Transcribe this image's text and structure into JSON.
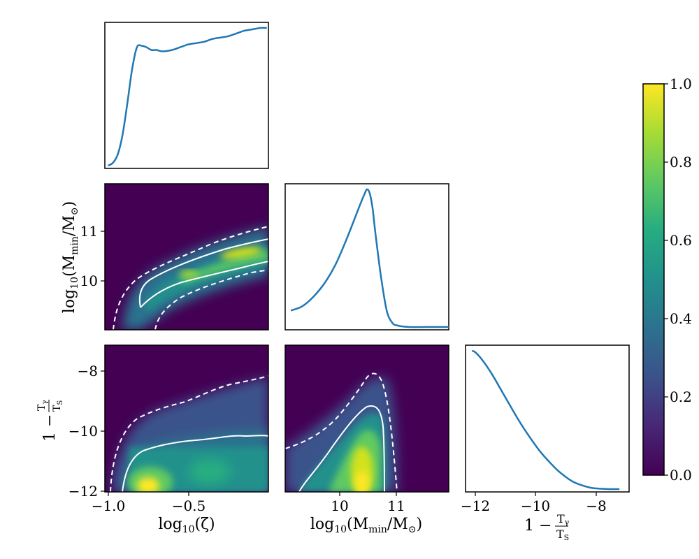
{
  "chart_data": [
    {
      "type": "line",
      "panel": "marginal-zeta",
      "x": [
        -1.0,
        -0.97,
        -0.94,
        -0.91,
        -0.88,
        -0.85,
        -0.82,
        -0.79,
        -0.76,
        -0.73,
        -0.7,
        -0.66,
        -0.6,
        -0.55,
        -0.5,
        -0.45,
        -0.4,
        -0.35,
        -0.3,
        -0.25,
        -0.2,
        -0.15,
        -0.1,
        -0.05,
        -0.01
      ],
      "values": [
        0.0,
        0.02,
        0.08,
        0.22,
        0.45,
        0.7,
        0.86,
        0.87,
        0.86,
        0.84,
        0.84,
        0.83,
        0.84,
        0.86,
        0.88,
        0.89,
        0.9,
        0.92,
        0.93,
        0.94,
        0.96,
        0.98,
        0.99,
        1.0,
        1.0
      ],
      "xlim": [
        -1.02,
        0.0
      ],
      "ylim": [
        0,
        1
      ]
    },
    {
      "type": "line",
      "panel": "marginal-mmin",
      "x": [
        9.1,
        9.3,
        9.5,
        9.7,
        9.9,
        10.1,
        10.3,
        10.4,
        10.45,
        10.5,
        10.55,
        10.6,
        10.7,
        10.8,
        10.9,
        11.0,
        11.2,
        11.5,
        11.9
      ],
      "values": [
        0.12,
        0.15,
        0.22,
        0.32,
        0.46,
        0.65,
        0.86,
        0.96,
        1.0,
        0.97,
        0.86,
        0.68,
        0.36,
        0.12,
        0.03,
        0.01,
        0.0,
        0.0,
        0.0
      ],
      "xlim": [
        9.0,
        11.9
      ],
      "ylim": [
        0,
        1
      ]
    },
    {
      "type": "line",
      "panel": "marginal-tgamma",
      "x": [
        -12.1,
        -12.0,
        -11.8,
        -11.5,
        -11.2,
        -11.0,
        -10.7,
        -10.4,
        -10.0,
        -9.7,
        -9.4,
        -9.0,
        -8.7,
        -8.4,
        -8.1,
        -7.8,
        -7.5
      ],
      "values": [
        1.0,
        0.99,
        0.94,
        0.84,
        0.72,
        0.64,
        0.52,
        0.41,
        0.28,
        0.2,
        0.13,
        0.06,
        0.03,
        0.01,
        0.003,
        0.0,
        0.0
      ],
      "xlim": [
        -12.3,
        -7.2
      ],
      "ylim": [
        0,
        1
      ]
    },
    {
      "type": "heatmap",
      "panel": "joint-zeta-mmin",
      "xlim": [
        -1.02,
        0.0
      ],
      "ylim": [
        9.0,
        11.95
      ],
      "yticks": [
        "10",
        "11"
      ],
      "ylabel": "log10(Mmin/M⊙)",
      "contour_68": {
        "upper": [
          [
            -0.79,
            9.45
          ],
          [
            -0.78,
            9.8
          ],
          [
            -0.7,
            10.05
          ],
          [
            -0.55,
            10.3
          ],
          [
            -0.4,
            10.48
          ],
          [
            -0.2,
            10.62
          ],
          [
            0.0,
            10.75
          ]
        ],
        "lower": [
          [
            -0.79,
            9.45
          ],
          [
            -0.66,
            9.72
          ],
          [
            -0.55,
            9.9
          ],
          [
            -0.4,
            10.05
          ],
          [
            -0.2,
            10.22
          ],
          [
            0.0,
            10.38
          ]
        ]
      },
      "contour_95": {
        "upper": [
          [
            -0.98,
            9.0
          ],
          [
            -0.92,
            9.6
          ],
          [
            -0.8,
            10.0
          ],
          [
            -0.65,
            10.3
          ],
          [
            -0.45,
            10.58
          ],
          [
            -0.2,
            10.85
          ],
          [
            0.0,
            11.1
          ]
        ],
        "lower": [
          [
            -0.7,
            9.0
          ],
          [
            -0.65,
            9.4
          ],
          [
            -0.5,
            9.7
          ],
          [
            -0.3,
            9.95
          ],
          [
            -0.1,
            10.15
          ],
          [
            0.0,
            10.22
          ]
        ]
      }
    },
    {
      "type": "heatmap",
      "panel": "joint-zeta-tgamma",
      "xlim": [
        -1.02,
        0.0
      ],
      "ylim": [
        -12.0,
        -7.0
      ],
      "xticks": [
        "−1.0",
        "−0.5"
      ],
      "yticks": [
        "−12",
        "−10",
        "−8"
      ],
      "xlabel": "log10(ζ)",
      "ylabel": "1 − Tγ/TS",
      "contour_68": [
        [
          -0.85,
          -12.0
        ],
        [
          -0.8,
          -11.2
        ],
        [
          -0.65,
          -10.85
        ],
        [
          -0.45,
          -10.7
        ],
        [
          -0.3,
          -10.55
        ],
        [
          -0.15,
          -10.45
        ],
        [
          0.0,
          -10.3
        ]
      ],
      "contour_95": [
        [
          -0.98,
          -12.0
        ],
        [
          -0.9,
          -11.0
        ],
        [
          -0.75,
          -10.25
        ],
        [
          -0.55,
          -9.7
        ],
        [
          -0.35,
          -9.2
        ],
        [
          -0.15,
          -8.7
        ],
        [
          0.0,
          -8.2
        ]
      ]
    },
    {
      "type": "heatmap",
      "panel": "joint-mmin-tgamma",
      "xlim": [
        9.0,
        11.9
      ],
      "ylim": [
        -12.0,
        -7.0
      ],
      "xticks": [
        "10",
        "11"
      ],
      "xlabel": "log10(Mmin/M⊙)",
      "contour_68": [
        [
          9.25,
          -12.0
        ],
        [
          9.7,
          -11.0
        ],
        [
          10.0,
          -10.3
        ],
        [
          10.3,
          -9.5
        ],
        [
          10.55,
          -9.1
        ],
        [
          10.7,
          -9.6
        ],
        [
          10.78,
          -12.0
        ]
      ],
      "contour_95": [
        [
          9.0,
          -10.7
        ],
        [
          9.6,
          -10.2
        ],
        [
          10.0,
          -9.4
        ],
        [
          10.3,
          -8.7
        ],
        [
          10.55,
          -8.1
        ],
        [
          10.8,
          -8.4
        ],
        [
          11.0,
          -12.0
        ]
      ]
    },
    {
      "type": "colorbar",
      "panel": "colorbar",
      "ylim": [
        0.0,
        1.0
      ],
      "yticks": [
        "0.0",
        "0.2",
        "0.4",
        "0.6",
        "0.8",
        "1.0"
      ],
      "colormap": [
        "#440154",
        "#3b528b",
        "#21918c",
        "#5ec962",
        "#fde725"
      ]
    }
  ],
  "labels": {
    "log10": "log",
    "ten": "10",
    "zeta": "(ζ)",
    "mmin_open": "(M",
    "mmin_sub": "min",
    "mmin_mid": "/M",
    "sun_sub": "⊙",
    "close": ")",
    "one_minus": "1 −",
    "t_gamma": "T",
    "gamma_sub": "γ",
    "t_s": "T",
    "s_sub": "S"
  },
  "ticks": {
    "zeta": [
      "−1.0",
      "−0.5"
    ],
    "mmin": [
      "10",
      "11"
    ],
    "tgamma_y": [
      "−12",
      "−10",
      "−8"
    ],
    "tgamma_x": [
      "−12",
      "−10",
      "−8"
    ],
    "colorbar": [
      "0.0",
      "0.2",
      "0.4",
      "0.6",
      "0.8",
      "1.0"
    ]
  }
}
